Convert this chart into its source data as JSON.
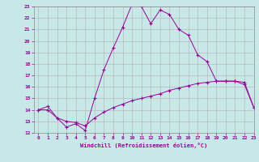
{
  "xlabel": "Windchill (Refroidissement éolien,°C)",
  "background_color": "#c8e8e8",
  "grid_color": "#b0b0b0",
  "line_color": "#990099",
  "x_values": [
    0,
    1,
    2,
    3,
    4,
    5,
    6,
    7,
    8,
    9,
    10,
    11,
    12,
    13,
    14,
    15,
    16,
    17,
    18,
    19,
    20,
    21,
    22,
    23
  ],
  "line1_y": [
    14.0,
    14.3,
    13.3,
    12.5,
    12.8,
    12.2,
    15.0,
    17.5,
    19.4,
    21.2,
    23.2,
    23.0,
    21.5,
    22.7,
    22.3,
    21.0,
    20.5,
    18.8,
    18.2,
    16.5,
    16.5,
    16.5,
    16.2,
    14.2
  ],
  "line2_y": [
    14.0,
    14.0,
    13.3,
    13.0,
    12.9,
    12.6,
    13.3,
    13.8,
    14.2,
    14.5,
    14.8,
    15.0,
    15.2,
    15.4,
    15.7,
    15.9,
    16.1,
    16.3,
    16.4,
    16.5,
    16.5,
    16.5,
    16.4,
    14.2
  ],
  "ylim": [
    12,
    23
  ],
  "xlim": [
    -0.5,
    23
  ],
  "yticks": [
    12,
    13,
    14,
    15,
    16,
    17,
    18,
    19,
    20,
    21,
    22,
    23
  ],
  "xticks": [
    0,
    1,
    2,
    3,
    4,
    5,
    6,
    7,
    8,
    9,
    10,
    11,
    12,
    13,
    14,
    15,
    16,
    17,
    18,
    19,
    20,
    21,
    22,
    23
  ]
}
